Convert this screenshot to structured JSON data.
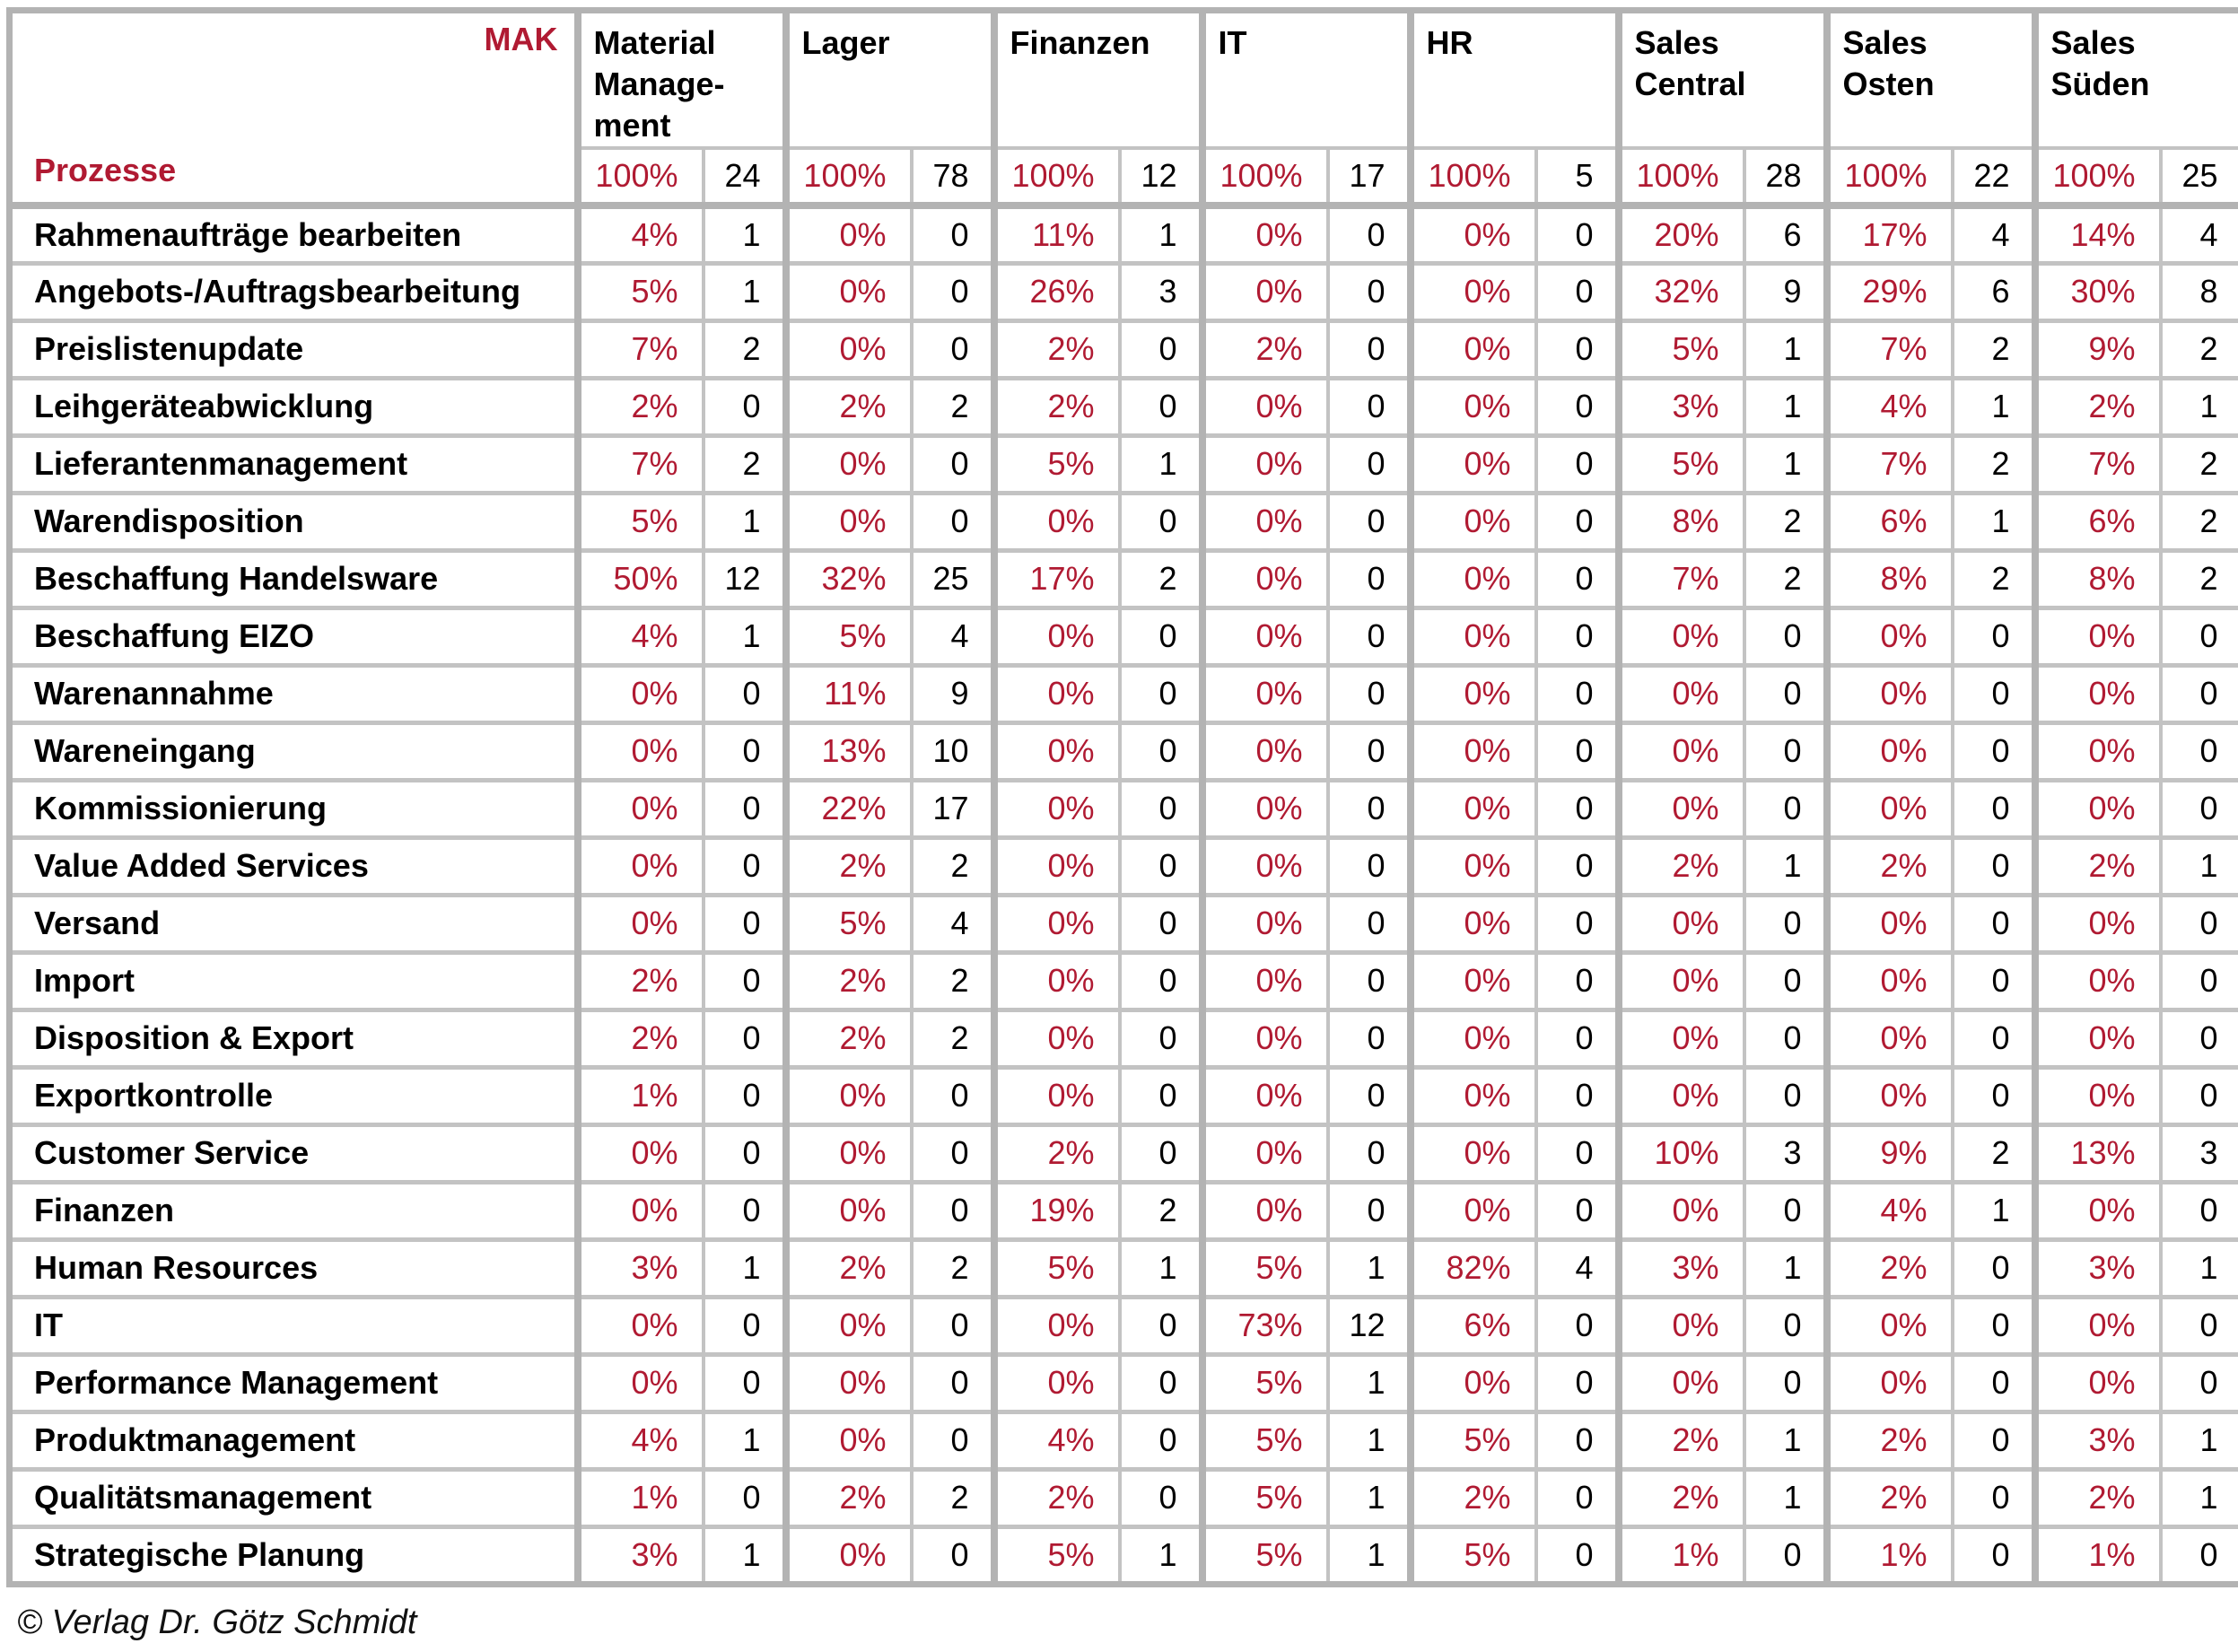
{
  "colors": {
    "accent_red": "#b01a32",
    "border_gray": "#b3b3b3",
    "border_gray_light": "#c3c3c3"
  },
  "header": {
    "corner_top_right": "MAK",
    "corner_bottom_left": "Prozesse",
    "departments": [
      {
        "name": "Material\nManage-\nment",
        "pct": "100%",
        "count": "24"
      },
      {
        "name": "Lager",
        "pct": "100%",
        "count": "78"
      },
      {
        "name": "Finanzen",
        "pct": "100%",
        "count": "12"
      },
      {
        "name": "IT",
        "pct": "100%",
        "count": "17"
      },
      {
        "name": "HR",
        "pct": "100%",
        "count": "5"
      },
      {
        "name": "Sales\nCentral",
        "pct": "100%",
        "count": "28"
      },
      {
        "name": "Sales\nOsten",
        "pct": "100%",
        "count": "22"
      },
      {
        "name": "Sales\nSüden",
        "pct": "100%",
        "count": "25"
      }
    ]
  },
  "rows": [
    {
      "label": "Rahmenaufträge bearbeiten",
      "cells": [
        [
          "4%",
          "1"
        ],
        [
          "0%",
          "0"
        ],
        [
          "11%",
          "1"
        ],
        [
          "0%",
          "0"
        ],
        [
          "0%",
          "0"
        ],
        [
          "20%",
          "6"
        ],
        [
          "17%",
          "4"
        ],
        [
          "14%",
          "4"
        ]
      ]
    },
    {
      "label": "Angebots-/Auftragsbearbeitung",
      "cells": [
        [
          "5%",
          "1"
        ],
        [
          "0%",
          "0"
        ],
        [
          "26%",
          "3"
        ],
        [
          "0%",
          "0"
        ],
        [
          "0%",
          "0"
        ],
        [
          "32%",
          "9"
        ],
        [
          "29%",
          "6"
        ],
        [
          "30%",
          "8"
        ]
      ]
    },
    {
      "label": "Preislistenupdate",
      "cells": [
        [
          "7%",
          "2"
        ],
        [
          "0%",
          "0"
        ],
        [
          "2%",
          "0"
        ],
        [
          "2%",
          "0"
        ],
        [
          "0%",
          "0"
        ],
        [
          "5%",
          "1"
        ],
        [
          "7%",
          "2"
        ],
        [
          "9%",
          "2"
        ]
      ]
    },
    {
      "label": "Leihgeräteabwicklung",
      "cells": [
        [
          "2%",
          "0"
        ],
        [
          "2%",
          "2"
        ],
        [
          "2%",
          "0"
        ],
        [
          "0%",
          "0"
        ],
        [
          "0%",
          "0"
        ],
        [
          "3%",
          "1"
        ],
        [
          "4%",
          "1"
        ],
        [
          "2%",
          "1"
        ]
      ]
    },
    {
      "label": "Lieferantenmanagement",
      "cells": [
        [
          "7%",
          "2"
        ],
        [
          "0%",
          "0"
        ],
        [
          "5%",
          "1"
        ],
        [
          "0%",
          "0"
        ],
        [
          "0%",
          "0"
        ],
        [
          "5%",
          "1"
        ],
        [
          "7%",
          "2"
        ],
        [
          "7%",
          "2"
        ]
      ]
    },
    {
      "label": "Warendisposition",
      "cells": [
        [
          "5%",
          "1"
        ],
        [
          "0%",
          "0"
        ],
        [
          "0%",
          "0"
        ],
        [
          "0%",
          "0"
        ],
        [
          "0%",
          "0"
        ],
        [
          "8%",
          "2"
        ],
        [
          "6%",
          "1"
        ],
        [
          "6%",
          "2"
        ]
      ]
    },
    {
      "label": "Beschaffung Handelsware",
      "cells": [
        [
          "50%",
          "12"
        ],
        [
          "32%",
          "25"
        ],
        [
          "17%",
          "2"
        ],
        [
          "0%",
          "0"
        ],
        [
          "0%",
          "0"
        ],
        [
          "7%",
          "2"
        ],
        [
          "8%",
          "2"
        ],
        [
          "8%",
          "2"
        ]
      ]
    },
    {
      "label": "Beschaffung EIZO",
      "cells": [
        [
          "4%",
          "1"
        ],
        [
          "5%",
          "4"
        ],
        [
          "0%",
          "0"
        ],
        [
          "0%",
          "0"
        ],
        [
          "0%",
          "0"
        ],
        [
          "0%",
          "0"
        ],
        [
          "0%",
          "0"
        ],
        [
          "0%",
          "0"
        ]
      ]
    },
    {
      "label": "Warenannahme",
      "cells": [
        [
          "0%",
          "0"
        ],
        [
          "11%",
          "9"
        ],
        [
          "0%",
          "0"
        ],
        [
          "0%",
          "0"
        ],
        [
          "0%",
          "0"
        ],
        [
          "0%",
          "0"
        ],
        [
          "0%",
          "0"
        ],
        [
          "0%",
          "0"
        ]
      ]
    },
    {
      "label": "Wareneingang",
      "cells": [
        [
          "0%",
          "0"
        ],
        [
          "13%",
          "10"
        ],
        [
          "0%",
          "0"
        ],
        [
          "0%",
          "0"
        ],
        [
          "0%",
          "0"
        ],
        [
          "0%",
          "0"
        ],
        [
          "0%",
          "0"
        ],
        [
          "0%",
          "0"
        ]
      ]
    },
    {
      "label": "Kommissionierung",
      "cells": [
        [
          "0%",
          "0"
        ],
        [
          "22%",
          "17"
        ],
        [
          "0%",
          "0"
        ],
        [
          "0%",
          "0"
        ],
        [
          "0%",
          "0"
        ],
        [
          "0%",
          "0"
        ],
        [
          "0%",
          "0"
        ],
        [
          "0%",
          "0"
        ]
      ]
    },
    {
      "label": "Value Added Services",
      "cells": [
        [
          "0%",
          "0"
        ],
        [
          "2%",
          "2"
        ],
        [
          "0%",
          "0"
        ],
        [
          "0%",
          "0"
        ],
        [
          "0%",
          "0"
        ],
        [
          "2%",
          "1"
        ],
        [
          "2%",
          "0"
        ],
        [
          "2%",
          "1"
        ]
      ]
    },
    {
      "label": "Versand",
      "cells": [
        [
          "0%",
          "0"
        ],
        [
          "5%",
          "4"
        ],
        [
          "0%",
          "0"
        ],
        [
          "0%",
          "0"
        ],
        [
          "0%",
          "0"
        ],
        [
          "0%",
          "0"
        ],
        [
          "0%",
          "0"
        ],
        [
          "0%",
          "0"
        ]
      ]
    },
    {
      "label": "Import",
      "cells": [
        [
          "2%",
          "0"
        ],
        [
          "2%",
          "2"
        ],
        [
          "0%",
          "0"
        ],
        [
          "0%",
          "0"
        ],
        [
          "0%",
          "0"
        ],
        [
          "0%",
          "0"
        ],
        [
          "0%",
          "0"
        ],
        [
          "0%",
          "0"
        ]
      ]
    },
    {
      "label": "Disposition & Export",
      "cells": [
        [
          "2%",
          "0"
        ],
        [
          "2%",
          "2"
        ],
        [
          "0%",
          "0"
        ],
        [
          "0%",
          "0"
        ],
        [
          "0%",
          "0"
        ],
        [
          "0%",
          "0"
        ],
        [
          "0%",
          "0"
        ],
        [
          "0%",
          "0"
        ]
      ]
    },
    {
      "label": "Exportkontrolle",
      "cells": [
        [
          "1%",
          "0"
        ],
        [
          "0%",
          "0"
        ],
        [
          "0%",
          "0"
        ],
        [
          "0%",
          "0"
        ],
        [
          "0%",
          "0"
        ],
        [
          "0%",
          "0"
        ],
        [
          "0%",
          "0"
        ],
        [
          "0%",
          "0"
        ]
      ]
    },
    {
      "label": "Customer Service",
      "cells": [
        [
          "0%",
          "0"
        ],
        [
          "0%",
          "0"
        ],
        [
          "2%",
          "0"
        ],
        [
          "0%",
          "0"
        ],
        [
          "0%",
          "0"
        ],
        [
          "10%",
          "3"
        ],
        [
          "9%",
          "2"
        ],
        [
          "13%",
          "3"
        ]
      ]
    },
    {
      "label": "Finanzen",
      "cells": [
        [
          "0%",
          "0"
        ],
        [
          "0%",
          "0"
        ],
        [
          "19%",
          "2"
        ],
        [
          "0%",
          "0"
        ],
        [
          "0%",
          "0"
        ],
        [
          "0%",
          "0"
        ],
        [
          "4%",
          "1"
        ],
        [
          "0%",
          "0"
        ]
      ]
    },
    {
      "label": "Human Resources",
      "cells": [
        [
          "3%",
          "1"
        ],
        [
          "2%",
          "2"
        ],
        [
          "5%",
          "1"
        ],
        [
          "5%",
          "1"
        ],
        [
          "82%",
          "4"
        ],
        [
          "3%",
          "1"
        ],
        [
          "2%",
          "0"
        ],
        [
          "3%",
          "1"
        ]
      ]
    },
    {
      "label": "IT",
      "cells": [
        [
          "0%",
          "0"
        ],
        [
          "0%",
          "0"
        ],
        [
          "0%",
          "0"
        ],
        [
          "73%",
          "12"
        ],
        [
          "6%",
          "0"
        ],
        [
          "0%",
          "0"
        ],
        [
          "0%",
          "0"
        ],
        [
          "0%",
          "0"
        ]
      ]
    },
    {
      "label": "Performance Management",
      "cells": [
        [
          "0%",
          "0"
        ],
        [
          "0%",
          "0"
        ],
        [
          "0%",
          "0"
        ],
        [
          "5%",
          "1"
        ],
        [
          "0%",
          "0"
        ],
        [
          "0%",
          "0"
        ],
        [
          "0%",
          "0"
        ],
        [
          "0%",
          "0"
        ]
      ]
    },
    {
      "label": "Produktmanagement",
      "cells": [
        [
          "4%",
          "1"
        ],
        [
          "0%",
          "0"
        ],
        [
          "4%",
          "0"
        ],
        [
          "5%",
          "1"
        ],
        [
          "5%",
          "0"
        ],
        [
          "2%",
          "1"
        ],
        [
          "2%",
          "0"
        ],
        [
          "3%",
          "1"
        ]
      ]
    },
    {
      "label": "Qualitätsmanagement",
      "cells": [
        [
          "1%",
          "0"
        ],
        [
          "2%",
          "2"
        ],
        [
          "2%",
          "0"
        ],
        [
          "5%",
          "1"
        ],
        [
          "2%",
          "0"
        ],
        [
          "2%",
          "1"
        ],
        [
          "2%",
          "0"
        ],
        [
          "2%",
          "1"
        ]
      ]
    },
    {
      "label": "Strategische Planung",
      "cells": [
        [
          "3%",
          "1"
        ],
        [
          "0%",
          "0"
        ],
        [
          "5%",
          "1"
        ],
        [
          "5%",
          "1"
        ],
        [
          "5%",
          "0"
        ],
        [
          "1%",
          "0"
        ],
        [
          "1%",
          "0"
        ],
        [
          "1%",
          "0"
        ]
      ]
    }
  ],
  "footer": {
    "copyright": "© Verlag Dr. Götz Schmidt"
  }
}
